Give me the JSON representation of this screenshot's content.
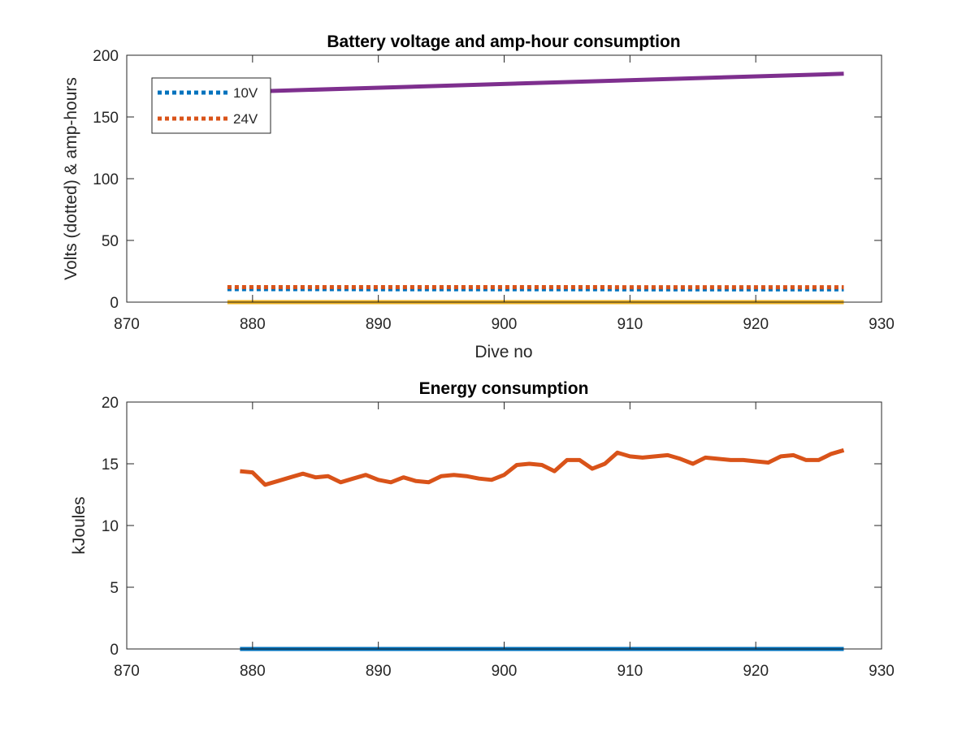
{
  "chart_data": [
    {
      "type": "line",
      "title": "Battery voltage and amp-hour consumption",
      "xlabel": "Dive no",
      "ylabel": "Volts (dotted) & amp-hours",
      "xlim": [
        870,
        930
      ],
      "ylim": [
        0,
        200
      ],
      "xticks": [
        870,
        880,
        890,
        900,
        910,
        920,
        930
      ],
      "yticks": [
        0,
        50,
        100,
        150,
        200
      ],
      "legend_position": "top-left",
      "grid": false,
      "series": [
        {
          "name": "10V",
          "style": "dotted",
          "color": "#0072BD",
          "x": [
            878,
            927
          ],
          "y": [
            10.5,
            10.3
          ]
        },
        {
          "name": "24V",
          "style": "dotted",
          "color": "#D95319",
          "x": [
            878,
            927
          ],
          "y": [
            12.2,
            12.1
          ]
        },
        {
          "style": "solid",
          "color": "#EDB120",
          "x": [
            878,
            927
          ],
          "y": [
            0,
            0
          ]
        },
        {
          "style": "solid",
          "color": "#7E2F8E",
          "x": [
            878,
            927
          ],
          "y": [
            170,
            185
          ]
        }
      ]
    },
    {
      "type": "line",
      "title": "Energy consumption",
      "xlabel": "",
      "ylabel": "kJoules",
      "xlim": [
        870,
        930
      ],
      "ylim": [
        0,
        20
      ],
      "xticks": [
        870,
        880,
        890,
        900,
        910,
        920,
        930
      ],
      "yticks": [
        0,
        5,
        10,
        15,
        20
      ],
      "grid": false,
      "series": [
        {
          "style": "solid",
          "color": "#0072BD",
          "x": [
            879,
            927
          ],
          "y": [
            0,
            0
          ]
        },
        {
          "style": "solid",
          "color": "#D95319",
          "x": [
            879,
            880,
            881,
            882,
            883,
            884,
            885,
            886,
            887,
            888,
            889,
            890,
            891,
            892,
            893,
            894,
            895,
            896,
            897,
            898,
            899,
            900,
            901,
            902,
            903,
            904,
            905,
            906,
            907,
            908,
            909,
            910,
            911,
            912,
            913,
            914,
            915,
            916,
            917,
            918,
            919,
            920,
            921,
            922,
            923,
            924,
            925,
            926,
            927
          ],
          "y": [
            14.4,
            14.3,
            13.3,
            13.6,
            13.9,
            14.2,
            13.9,
            14.0,
            13.5,
            13.8,
            14.1,
            13.7,
            13.5,
            13.9,
            13.6,
            13.5,
            14.0,
            14.1,
            14.0,
            13.8,
            13.7,
            14.1,
            14.9,
            15.0,
            14.9,
            14.4,
            15.3,
            15.3,
            14.6,
            15.0,
            15.9,
            15.6,
            15.5,
            15.6,
            15.7,
            15.4,
            15.0,
            15.5,
            15.4,
            15.3,
            15.3,
            15.2,
            15.1,
            15.6,
            15.7,
            15.3,
            15.3,
            15.8,
            16.1
          ]
        }
      ]
    }
  ]
}
